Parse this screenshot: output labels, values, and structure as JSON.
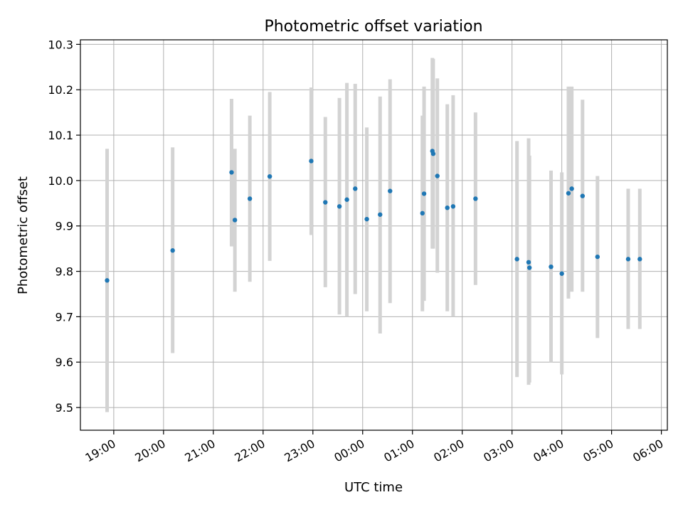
{
  "chart_data": {
    "type": "scatter",
    "title": "Photometric offset variation",
    "xlabel": "UTC time",
    "ylabel": "Photometric offset",
    "x_tick_labels": [
      "19:00",
      "20:00",
      "21:00",
      "22:00",
      "23:00",
      "00:00",
      "01:00",
      "02:00",
      "03:00",
      "04:00",
      "05:00",
      "06:00"
    ],
    "x_tick_hours": [
      19,
      20,
      21,
      22,
      23,
      24,
      25,
      26,
      27,
      28,
      29,
      30
    ],
    "xlim_hours": [
      18.33,
      30.12
    ],
    "y_ticks": [
      9.5,
      9.6,
      9.7,
      9.8,
      9.9,
      10.0,
      10.1,
      10.2,
      10.3
    ],
    "y_tick_labels": [
      "9.5",
      "9.6",
      "9.7",
      "9.8",
      "9.9",
      "10.0",
      "10.1",
      "10.2",
      "10.3"
    ],
    "ylim": [
      9.45,
      10.31
    ],
    "grid": true,
    "colors": {
      "marker": "#1f77b4",
      "errorbar": "#d3d3d3",
      "grid": "#b0b0b0"
    },
    "points": [
      {
        "time": "18:52",
        "y": 9.78,
        "err_low": 9.49,
        "err_high": 10.07
      },
      {
        "time": "20:11",
        "y": 9.846,
        "err_low": 9.62,
        "err_high": 10.073
      },
      {
        "time": "21:22",
        "y": 10.018,
        "err_low": 9.855,
        "err_high": 10.18
      },
      {
        "time": "21:26",
        "y": 9.913,
        "err_low": 9.755,
        "err_high": 10.07
      },
      {
        "time": "21:44",
        "y": 9.96,
        "err_low": 9.777,
        "err_high": 10.143
      },
      {
        "time": "22:08",
        "y": 10.009,
        "err_low": 9.823,
        "err_high": 10.195
      },
      {
        "time": "22:58",
        "y": 10.043,
        "err_low": 9.88,
        "err_high": 10.205
      },
      {
        "time": "23:15",
        "y": 9.952,
        "err_low": 9.765,
        "err_high": 10.14
      },
      {
        "time": "23:32",
        "y": 9.943,
        "err_low": 9.705,
        "err_high": 10.182
      },
      {
        "time": "23:41",
        "y": 9.958,
        "err_low": 9.7,
        "err_high": 10.215
      },
      {
        "time": "23:51",
        "y": 9.982,
        "err_low": 9.75,
        "err_high": 10.213
      },
      {
        "time": "00:05",
        "y": 9.915,
        "err_low": 9.712,
        "err_high": 10.117
      },
      {
        "time": "00:21",
        "y": 9.925,
        "err_low": 9.663,
        "err_high": 10.185
      },
      {
        "time": "00:33",
        "y": 9.977,
        "err_low": 9.73,
        "err_high": 10.223
      },
      {
        "time": "01:12",
        "y": 9.928,
        "err_low": 9.712,
        "err_high": 10.143
      },
      {
        "time": "01:14",
        "y": 9.971,
        "err_low": 9.735,
        "err_high": 10.207
      },
      {
        "time": "01:24",
        "y": 10.065,
        "err_low": 9.85,
        "err_high": 10.27
      },
      {
        "time": "01:25",
        "y": 10.059,
        "err_low": 9.85,
        "err_high": 10.268
      },
      {
        "time": "01:30",
        "y": 10.01,
        "err_low": 9.797,
        "err_high": 10.225
      },
      {
        "time": "01:42",
        "y": 9.94,
        "err_low": 9.712,
        "err_high": 10.168
      },
      {
        "time": "01:49",
        "y": 9.943,
        "err_low": 9.7,
        "err_high": 10.188
      },
      {
        "time": "02:16",
        "y": 9.96,
        "err_low": 9.77,
        "err_high": 10.15
      },
      {
        "time": "03:06",
        "y": 9.827,
        "err_low": 9.567,
        "err_high": 10.087
      },
      {
        "time": "03:20",
        "y": 9.82,
        "err_low": 9.55,
        "err_high": 10.093
      },
      {
        "time": "03:21",
        "y": 9.808,
        "err_low": 9.555,
        "err_high": 10.055
      },
      {
        "time": "03:47",
        "y": 9.81,
        "err_low": 9.6,
        "err_high": 10.022
      },
      {
        "time": "04:00",
        "y": 9.795,
        "err_low": 9.573,
        "err_high": 10.018
      },
      {
        "time": "04:08",
        "y": 9.972,
        "err_low": 9.74,
        "err_high": 10.207
      },
      {
        "time": "04:12",
        "y": 9.982,
        "err_low": 9.755,
        "err_high": 10.207
      },
      {
        "time": "04:25",
        "y": 9.966,
        "err_low": 9.755,
        "err_high": 10.178
      },
      {
        "time": "04:43",
        "y": 9.832,
        "err_low": 9.653,
        "err_high": 10.01
      },
      {
        "time": "05:20",
        "y": 9.827,
        "err_low": 9.673,
        "err_high": 9.982
      },
      {
        "time": "05:34",
        "y": 9.827,
        "err_low": 9.673,
        "err_high": 9.982
      }
    ]
  }
}
